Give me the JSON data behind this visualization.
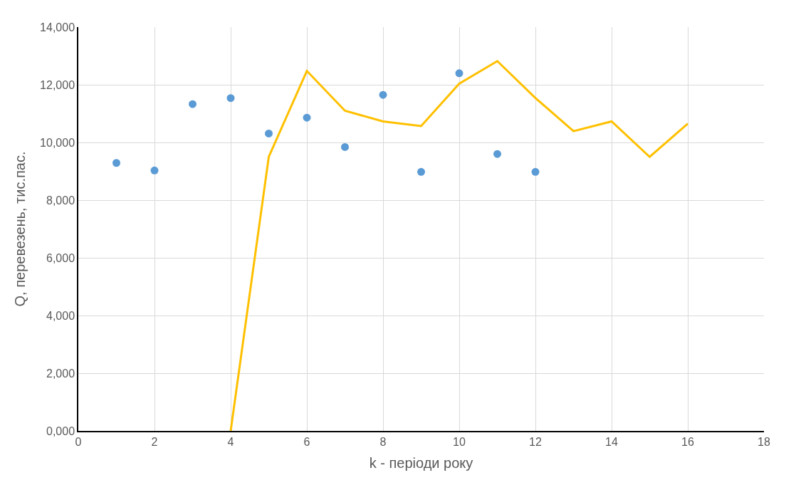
{
  "chart_data": {
    "type": "scatter",
    "xlabel": "k - періоди року",
    "ylabel": "Q, перевезень, тис.пас.",
    "xlim": [
      0,
      18
    ],
    "xticks": [
      0,
      2,
      4,
      6,
      8,
      10,
      12,
      14,
      16,
      18
    ],
    "ylim": [
      0,
      14000
    ],
    "yticks": [
      {
        "value": 0,
        "label": "0,000"
      },
      {
        "value": 2000,
        "label": "2,000"
      },
      {
        "value": 4000,
        "label": "4,000"
      },
      {
        "value": 6000,
        "label": "6,000"
      },
      {
        "value": 8000,
        "label": "8,000"
      },
      {
        "value": 10000,
        "label": "10,000"
      },
      {
        "value": 12000,
        "label": "12,000"
      },
      {
        "value": 14000,
        "label": "14,000"
      }
    ],
    "grid": true,
    "series": [
      {
        "color": "#5b9bd5",
        "marker": "circle",
        "x": [
          1,
          2,
          3,
          4,
          5,
          6,
          7,
          8,
          9,
          10,
          11,
          12
        ],
        "values": [
          9290,
          9030,
          11330,
          11540,
          10310,
          10860,
          9840,
          11650,
          8980,
          12400,
          9600,
          8980
        ]
      },
      {
        "type": "line",
        "color": "#ffc000",
        "marker": "none",
        "line_style": "solid",
        "x": [
          4,
          5,
          6,
          7,
          8,
          9,
          10,
          11,
          12,
          13,
          14,
          15,
          16
        ],
        "values": [
          0,
          9500,
          12480,
          11100,
          10730,
          10570,
          12040,
          12820,
          11540,
          10390,
          10730,
          9500,
          10650
        ]
      }
    ]
  }
}
